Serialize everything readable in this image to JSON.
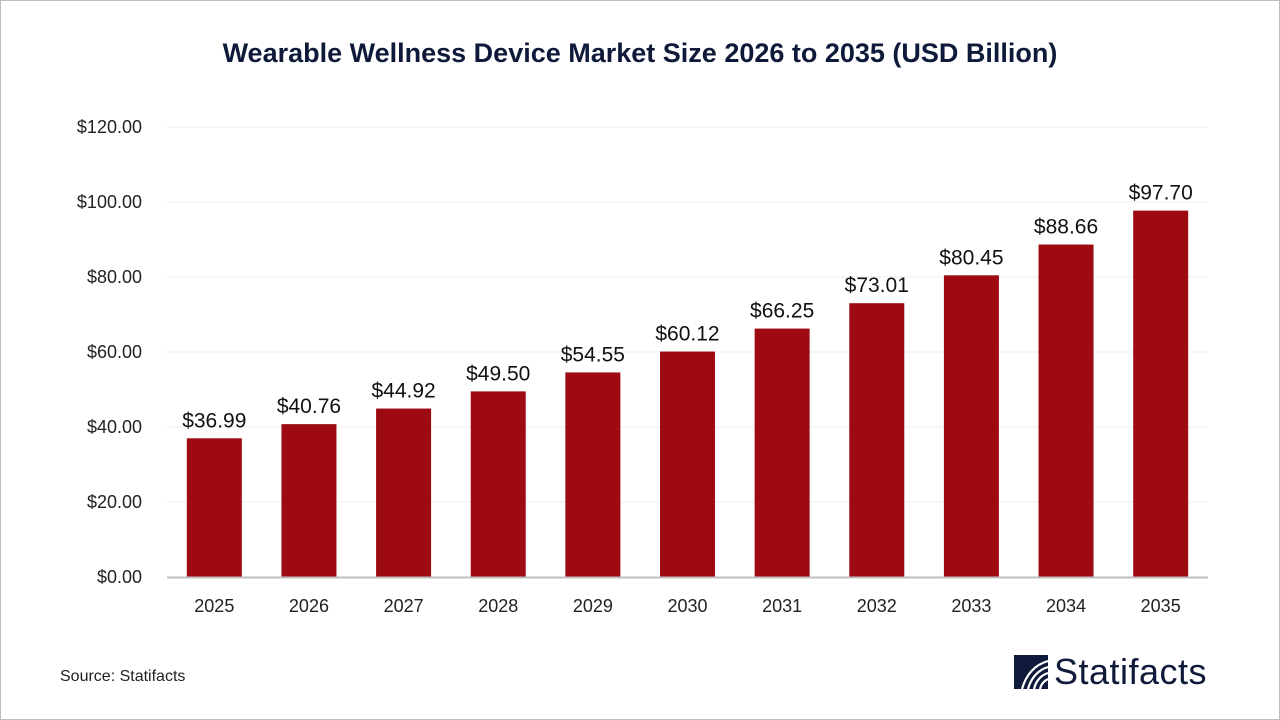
{
  "chart_data": {
    "type": "bar",
    "title": "Wearable Wellness Device Market Size 2026 to 2035 (USD Billion)",
    "categories": [
      "2025",
      "2026",
      "2027",
      "2028",
      "2029",
      "2030",
      "2031",
      "2032",
      "2033",
      "2034",
      "2035"
    ],
    "values": [
      36.99,
      40.76,
      44.92,
      49.5,
      54.55,
      60.12,
      66.25,
      73.01,
      80.45,
      88.66,
      97.7
    ],
    "data_labels": [
      "$36.99",
      "$40.76",
      "$44.92",
      "$49.50",
      "$54.55",
      "$60.12",
      "$66.25",
      "$73.01",
      "$80.45",
      "$88.66",
      "$97.70"
    ],
    "yticks": [
      "$0.00",
      "$20.00",
      "$40.00",
      "$60.00",
      "$80.00",
      "$100.00",
      "$120.00"
    ],
    "ylim": [
      0,
      120
    ],
    "xlabel": "",
    "ylabel": "",
    "grid": true,
    "bar_color": "#9e0a12"
  },
  "source": "Source: Statifacts",
  "logo": {
    "text": "Statifacts",
    "color": "#0f1a3a"
  }
}
